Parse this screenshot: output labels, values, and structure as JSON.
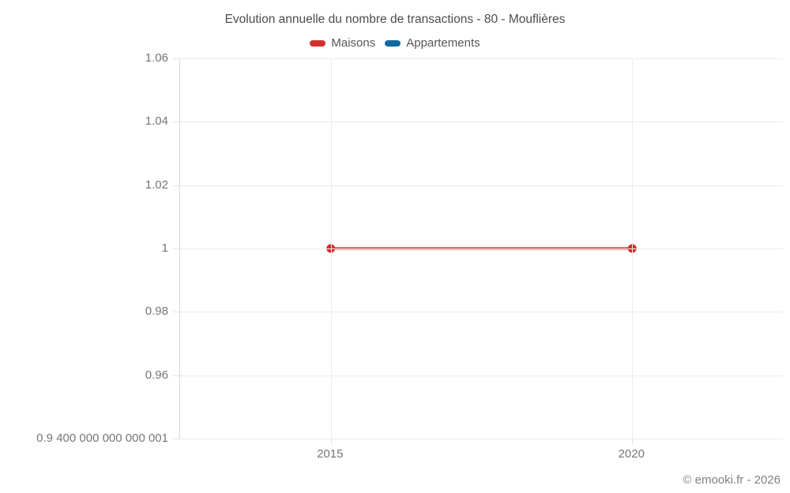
{
  "title": "Evolution annuelle du nombre de transactions - 80 - Mouflières",
  "legend": [
    {
      "label": "Maisons",
      "color": "#d32f2f"
    },
    {
      "label": "Appartements",
      "color": "#1269a0"
    }
  ],
  "footer": {
    "copyright": "© emooki.fr - 2026"
  },
  "chart_data": {
    "type": "line",
    "title": "Evolution annuelle du nombre de transactions - 80 - Mouflières",
    "x": [
      2015,
      2020
    ],
    "series": [
      {
        "name": "Maisons",
        "color": "#d32f2f",
        "values": [
          1,
          1
        ]
      },
      {
        "name": "Appartements",
        "color": "#1269a0",
        "values": []
      }
    ],
    "xlabel": "",
    "ylabel": "",
    "xlim": [
      2012.5,
      2022.5
    ],
    "ylim": [
      0.9400000000000001,
      1.06
    ],
    "grid": true,
    "legend_position": "top",
    "yticks": [
      {
        "value": 1.06,
        "label": "1.06"
      },
      {
        "value": 1.04,
        "label": "1.04"
      },
      {
        "value": 1.02,
        "label": "1.02"
      },
      {
        "value": 1.0,
        "label": "1"
      },
      {
        "value": 0.98,
        "label": "0.98"
      },
      {
        "value": 0.96,
        "label": "0.96"
      },
      {
        "value": 0.9400000000000001,
        "label": "0.9 400 000 000 000 001"
      }
    ],
    "xticks": [
      {
        "value": 2015,
        "label": "2015"
      },
      {
        "value": 2020,
        "label": "2020"
      }
    ]
  }
}
